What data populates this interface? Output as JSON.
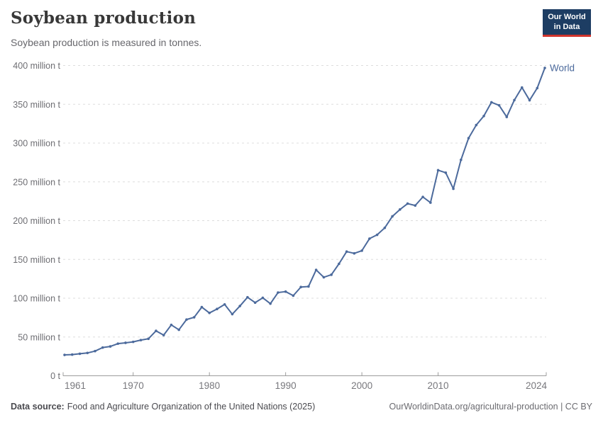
{
  "header": {
    "title": "Soybean production",
    "subtitle": "Soybean production is measured in tonnes."
  },
  "logo": {
    "line1": "Our World",
    "line2": "in Data",
    "bg_color": "#1d3d63",
    "stripe_color": "#d0342c"
  },
  "chart_data": {
    "type": "line",
    "title": "Soybean production",
    "ylabel": "",
    "xlabel": "",
    "unit": "million tonnes",
    "xlim": [
      1961,
      2024
    ],
    "ylim": [
      0,
      400
    ],
    "grid": "dashed-horizontal",
    "legend_position": "end-of-line",
    "colors": {
      "line": "#4c6a9c",
      "gridline": "#dddddd",
      "axis": "#9c9c9c",
      "y_tick_text": "#6e6e73",
      "x_tick_text": "#78787d"
    },
    "y_ticks": [
      {
        "v": 0,
        "label": "0 t"
      },
      {
        "v": 50,
        "label": "50 million t"
      },
      {
        "v": 100,
        "label": "100 million t"
      },
      {
        "v": 150,
        "label": "150 million t"
      },
      {
        "v": 200,
        "label": "200 million t"
      },
      {
        "v": 250,
        "label": "250 million t"
      },
      {
        "v": 300,
        "label": "300 million t"
      },
      {
        "v": 350,
        "label": "350 million t"
      },
      {
        "v": 400,
        "label": "400 million t"
      }
    ],
    "x_ticks": [
      {
        "year": 1961,
        "label": "1961",
        "align": "start"
      },
      {
        "year": 1970,
        "label": "1970",
        "align": "middle"
      },
      {
        "year": 1980,
        "label": "1980",
        "align": "middle"
      },
      {
        "year": 1990,
        "label": "1990",
        "align": "middle"
      },
      {
        "year": 2000,
        "label": "2000",
        "align": "middle"
      },
      {
        "year": 2010,
        "label": "2010",
        "align": "middle"
      },
      {
        "year": 2024,
        "label": "2024",
        "align": "end"
      }
    ],
    "series": [
      {
        "name": "World",
        "color": "#4c6a9c",
        "points": [
          [
            1961,
            26.9
          ],
          [
            1962,
            27.3
          ],
          [
            1963,
            28.4
          ],
          [
            1964,
            29.4
          ],
          [
            1965,
            31.8
          ],
          [
            1966,
            36.4
          ],
          [
            1967,
            37.8
          ],
          [
            1968,
            41.4
          ],
          [
            1969,
            42.5
          ],
          [
            1970,
            43.7
          ],
          [
            1971,
            46.0
          ],
          [
            1972,
            47.7
          ],
          [
            1973,
            57.9
          ],
          [
            1974,
            52.4
          ],
          [
            1975,
            65.6
          ],
          [
            1976,
            59.3
          ],
          [
            1977,
            72.5
          ],
          [
            1978,
            75.4
          ],
          [
            1979,
            88.5
          ],
          [
            1980,
            81.0
          ],
          [
            1981,
            86.1
          ],
          [
            1982,
            92.0
          ],
          [
            1983,
            79.4
          ],
          [
            1984,
            89.9
          ],
          [
            1985,
            101.2
          ],
          [
            1986,
            94.3
          ],
          [
            1987,
            100.5
          ],
          [
            1988,
            93.0
          ],
          [
            1989,
            107.3
          ],
          [
            1990,
            108.5
          ],
          [
            1991,
            103.3
          ],
          [
            1992,
            114.4
          ],
          [
            1993,
            115.1
          ],
          [
            1994,
            136.5
          ],
          [
            1995,
            127.0
          ],
          [
            1996,
            130.3
          ],
          [
            1997,
            144.4
          ],
          [
            1998,
            160.1
          ],
          [
            1999,
            157.8
          ],
          [
            2000,
            161.3
          ],
          [
            2001,
            176.8
          ],
          [
            2002,
            181.7
          ],
          [
            2003,
            190.7
          ],
          [
            2004,
            205.5
          ],
          [
            2005,
            214.4
          ],
          [
            2006,
            222.0
          ],
          [
            2007,
            219.5
          ],
          [
            2008,
            230.6
          ],
          [
            2009,
            223.2
          ],
          [
            2010,
            265.0
          ],
          [
            2011,
            261.8
          ],
          [
            2012,
            241.1
          ],
          [
            2013,
            278.4
          ],
          [
            2014,
            306.4
          ],
          [
            2015,
            323.2
          ],
          [
            2016,
            334.9
          ],
          [
            2017,
            352.6
          ],
          [
            2018,
            348.7
          ],
          [
            2019,
            333.7
          ],
          [
            2020,
            355.4
          ],
          [
            2021,
            371.7
          ],
          [
            2022,
            355.2
          ],
          [
            2023,
            370.9
          ],
          [
            2024,
            396.9
          ]
        ]
      }
    ]
  },
  "footer": {
    "source_label": "Data source:",
    "source_text": "Food and Agriculture Organization of the United Nations (2025)",
    "url_text": "OurWorldinData.org/agricultural-production | CC BY"
  }
}
